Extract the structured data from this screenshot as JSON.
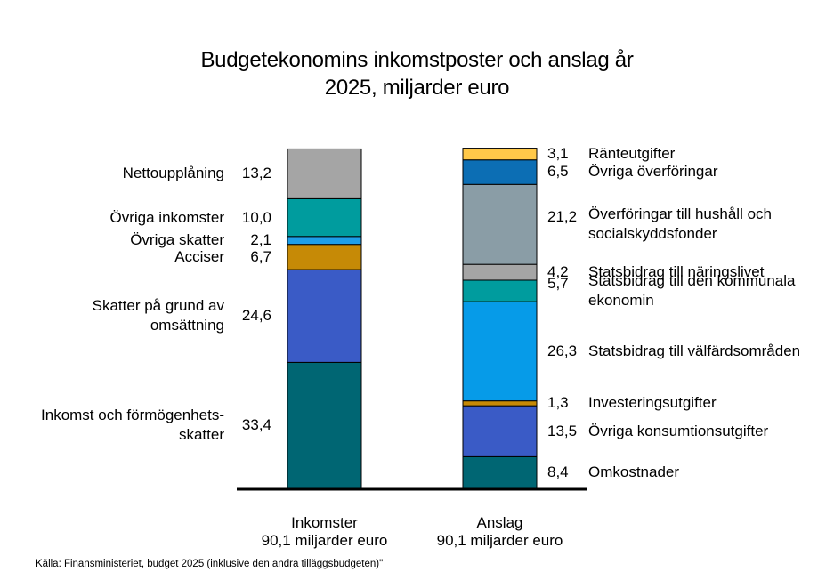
{
  "chart_data": {
    "type": "bar",
    "stacked": true,
    "title": "Budgetekonomins inkomstposter och anslag år 2025, miljarder euro",
    "title_lines": [
      "Budgetekonomins inkomstposter och anslag år",
      "2025, miljarder euro"
    ],
    "categories": [
      {
        "name": "Inkomster",
        "total_label": "90,1 miljarder euro"
      },
      {
        "name": "Anslag",
        "total_label": "90,1 miljarder euro"
      }
    ],
    "series": [
      {
        "bar": "Inkomster",
        "segments": [
          {
            "name": "Inkomst och förmögenhets-skatter",
            "lines": [
              "Inkomst och förmögenhets-",
              "skatter"
            ],
            "value": 33.4,
            "label": "33,4",
            "color": "#006673"
          },
          {
            "name": "Skatter på grund av omsättning",
            "lines": [
              "Skatter på grund av",
              "omsättning"
            ],
            "value": 24.6,
            "label": "24,6",
            "color": "#3a5bc6"
          },
          {
            "name": "Acciser",
            "lines": [
              "Acciser"
            ],
            "value": 6.7,
            "label": "6,7",
            "color": "#c68a06"
          },
          {
            "name": "Övriga skatter",
            "lines": [
              "Övriga skatter"
            ],
            "value": 2.1,
            "label": "2,1",
            "color": "#1e9ee8"
          },
          {
            "name": "Övriga inkomster",
            "lines": [
              "Övriga inkomster"
            ],
            "value": 10.0,
            "label": "10,0",
            "color": "#009c9e"
          },
          {
            "name": "Nettoupplåning",
            "lines": [
              "Nettoupplåning"
            ],
            "value": 13.2,
            "label": "13,2",
            "color": "#a5a5a5"
          }
        ]
      },
      {
        "bar": "Anslag",
        "segments": [
          {
            "name": "Omkostnader",
            "lines": [
              "Omkostnader"
            ],
            "value": 8.4,
            "label": "8,4",
            "color": "#006673"
          },
          {
            "name": "Övriga konsumtionsutgifter",
            "lines": [
              "Övriga konsumtionsutgifter"
            ],
            "value": 13.5,
            "label": "13,5",
            "color": "#3a5bc6"
          },
          {
            "name": "Investeringsutgifter",
            "lines": [
              "Investeringsutgifter"
            ],
            "value": 1.3,
            "label": "1,3",
            "color": "#c68a06"
          },
          {
            "name": "Statsbidrag till välfärdsområden",
            "lines": [
              "Statsbidrag till välfärdsområden"
            ],
            "value": 26.3,
            "label": "26,3",
            "color": "#069be8"
          },
          {
            "name": "Statsbidrag till den kommunala ekonomin",
            "lines": [
              "Statsbidrag till den kommunala",
              "ekonomin"
            ],
            "value": 5.7,
            "label": "5,7",
            "color": "#009c9e"
          },
          {
            "name": "Statsbidrag till näringslivet",
            "lines": [
              "Statsbidrag till näringslivet"
            ],
            "value": 4.2,
            "label": "4,2",
            "color": "#a5a5a5"
          },
          {
            "name": "Överföringar till hushåll och socialskyddsfonder",
            "lines": [
              "Överföringar till hushåll och",
              "socialskyddsfonder"
            ],
            "value": 21.2,
            "label": "21,2",
            "color": "#8a9da6"
          },
          {
            "name": "Övriga överföringar",
            "lines": [
              "Övriga överföringar"
            ],
            "value": 6.5,
            "label": "6,5",
            "color": "#0c6eb4"
          },
          {
            "name": "Ränteutgifter",
            "lines": [
              "Ränteutgifter"
            ],
            "value": 3.1,
            "label": "3,1",
            "color": "#ffc94a"
          }
        ]
      }
    ],
    "ylim": [
      0,
      90.1
    ],
    "xlabel": "",
    "ylabel": "",
    "source": "Källa: Finansministeriet, budget 2025 (inklusive den andra tilläggsbudgeten)\""
  }
}
